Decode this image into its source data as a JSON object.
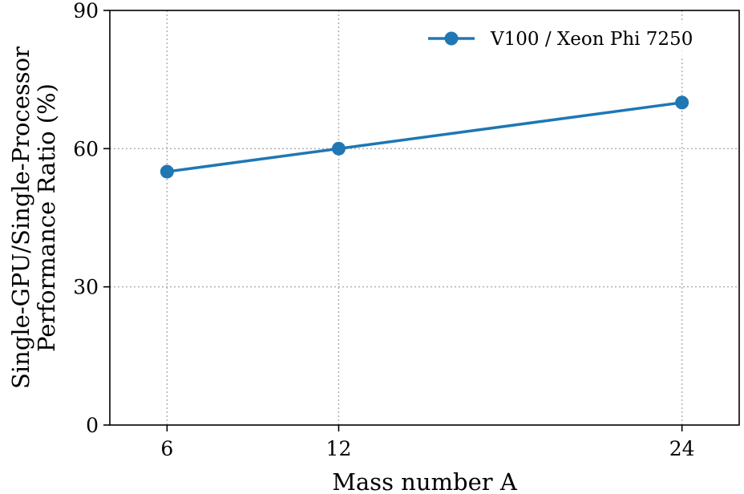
{
  "chart_data": {
    "type": "line",
    "xlabel": "Mass number A",
    "ylabel_lines": [
      "Single-GPU/Single-Processor",
      "Performance Ratio (%)"
    ],
    "x_ticks": [
      6,
      12,
      24
    ],
    "x_tick_labels": [
      "6",
      "12",
      "24"
    ],
    "y_ticks": [
      0,
      30,
      60,
      90
    ],
    "y_tick_labels": [
      "0",
      "30",
      "60",
      "90"
    ],
    "xlim": [
      4,
      26
    ],
    "ylim": [
      0,
      90
    ],
    "grid": true,
    "legend_position": "top-right",
    "series": [
      {
        "name": "V100 / Xeon Phi 7250",
        "color": "#1f77b4",
        "marker": "circle",
        "x": [
          6,
          12,
          24
        ],
        "y": [
          55,
          60,
          70
        ]
      }
    ]
  }
}
